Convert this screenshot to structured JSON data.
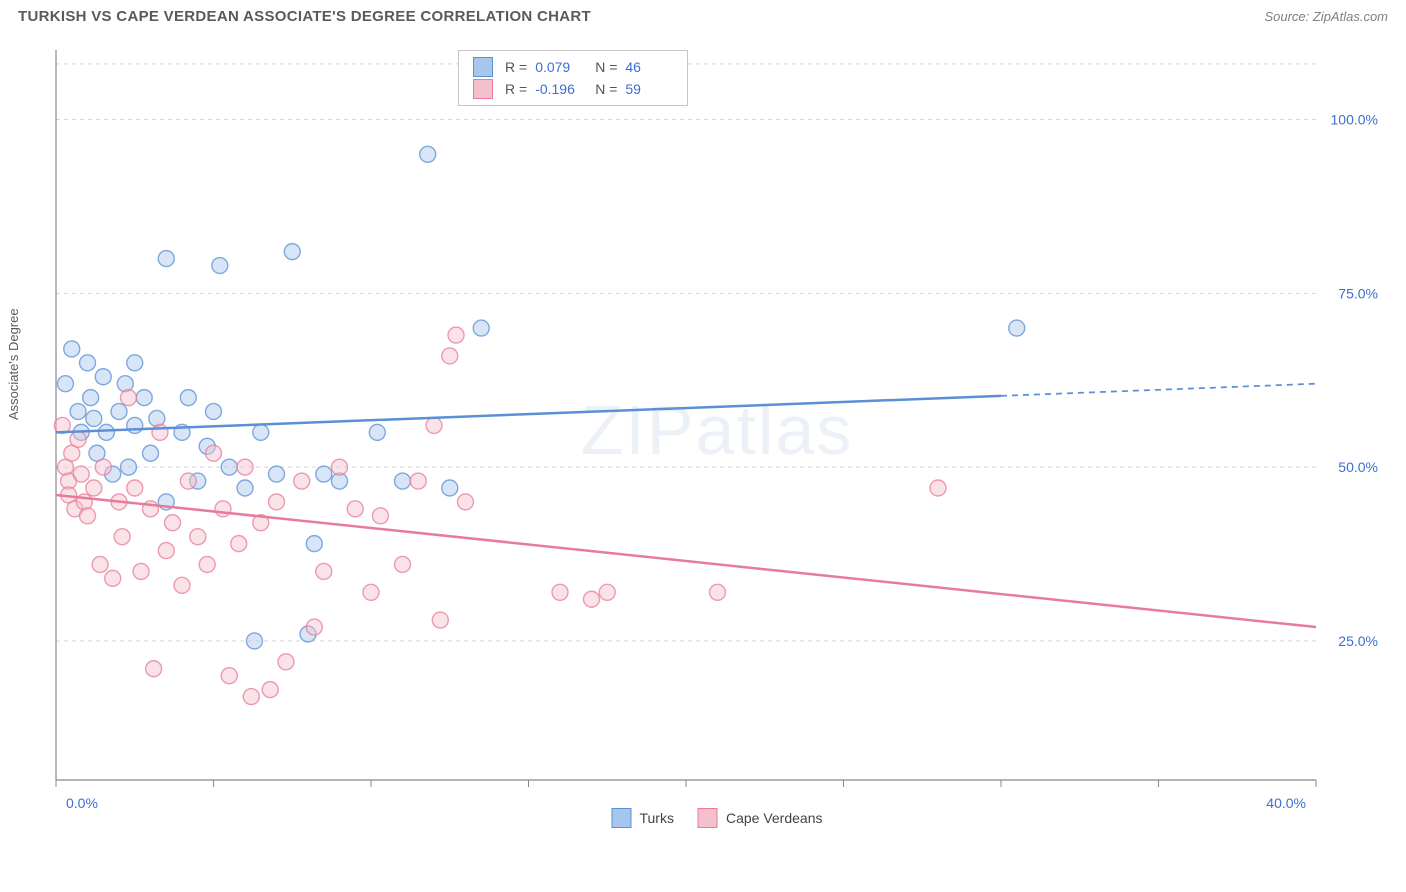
{
  "title": "TURKISH VS CAPE VERDEAN ASSOCIATE'S DEGREE CORRELATION CHART",
  "source": "Source: ZipAtlas.com",
  "watermark": "ZIPatlas",
  "y_axis_label": "Associate's Degree",
  "chart": {
    "type": "scatter",
    "background_color": "#ffffff",
    "grid_color": "#d7d7d7",
    "x": {
      "min": 0,
      "max": 40,
      "ticks": [
        0,
        5,
        10,
        15,
        20,
        25,
        30,
        35,
        40
      ],
      "labeled_ticks": [
        {
          "v": 0,
          "t": "0.0%"
        },
        {
          "v": 40,
          "t": "40.0%"
        }
      ]
    },
    "y": {
      "min": 5,
      "max": 110,
      "gridlines": [
        25,
        50,
        75,
        100
      ],
      "labels": [
        {
          "v": 25,
          "t": "25.0%"
        },
        {
          "v": 50,
          "t": "50.0%"
        },
        {
          "v": 75,
          "t": "75.0%"
        },
        {
          "v": 100,
          "t": "100.0%"
        }
      ]
    },
    "marker_radius": 8,
    "marker_opacity": 0.45,
    "line_width": 2.5,
    "series": [
      {
        "name": "Turks",
        "fill": "#a6c6ed",
        "stroke": "#5b8fd6",
        "r_value": "0.079",
        "n_value": "46",
        "trend": {
          "y_at_xmin": 55,
          "y_at_xmax": 62,
          "x_solid_end": 30
        },
        "points": [
          [
            0.3,
            62
          ],
          [
            0.5,
            67
          ],
          [
            0.7,
            58
          ],
          [
            0.8,
            55
          ],
          [
            1.0,
            65
          ],
          [
            1.1,
            60
          ],
          [
            1.2,
            57
          ],
          [
            1.3,
            52
          ],
          [
            1.5,
            63
          ],
          [
            1.6,
            55
          ],
          [
            1.8,
            49
          ],
          [
            2.0,
            58
          ],
          [
            2.2,
            62
          ],
          [
            2.3,
            50
          ],
          [
            2.5,
            56
          ],
          [
            2.5,
            65
          ],
          [
            2.8,
            60
          ],
          [
            3.0,
            52
          ],
          [
            3.2,
            57
          ],
          [
            3.5,
            45
          ],
          [
            3.5,
            80
          ],
          [
            4.0,
            55
          ],
          [
            4.2,
            60
          ],
          [
            4.5,
            48
          ],
          [
            4.8,
            53
          ],
          [
            5.0,
            58
          ],
          [
            5.2,
            79
          ],
          [
            5.5,
            50
          ],
          [
            6.0,
            47
          ],
          [
            6.3,
            25
          ],
          [
            6.5,
            55
          ],
          [
            7.0,
            49
          ],
          [
            7.5,
            81
          ],
          [
            8.0,
            26
          ],
          [
            8.2,
            39
          ],
          [
            8.5,
            49
          ],
          [
            9.0,
            48
          ],
          [
            10.2,
            55
          ],
          [
            11.0,
            48
          ],
          [
            11.8,
            95
          ],
          [
            12.5,
            47
          ],
          [
            13.5,
            70
          ],
          [
            30.5,
            70
          ]
        ]
      },
      {
        "name": "Cape Verdeans",
        "fill": "#f3c0cc",
        "stroke": "#e87b9a",
        "r_value": "-0.196",
        "n_value": "59",
        "trend": {
          "y_at_xmin": 46,
          "y_at_xmax": 27,
          "x_solid_end": 40
        },
        "points": [
          [
            0.2,
            56
          ],
          [
            0.3,
            50
          ],
          [
            0.4,
            48
          ],
          [
            0.4,
            46
          ],
          [
            0.5,
            52
          ],
          [
            0.6,
            44
          ],
          [
            0.7,
            54
          ],
          [
            0.8,
            49
          ],
          [
            0.9,
            45
          ],
          [
            1.0,
            43
          ],
          [
            1.2,
            47
          ],
          [
            1.4,
            36
          ],
          [
            1.5,
            50
          ],
          [
            1.8,
            34
          ],
          [
            2.0,
            45
          ],
          [
            2.1,
            40
          ],
          [
            2.3,
            60
          ],
          [
            2.5,
            47
          ],
          [
            2.7,
            35
          ],
          [
            3.0,
            44
          ],
          [
            3.1,
            21
          ],
          [
            3.3,
            55
          ],
          [
            3.5,
            38
          ],
          [
            3.7,
            42
          ],
          [
            4.0,
            33
          ],
          [
            4.2,
            48
          ],
          [
            4.5,
            40
          ],
          [
            4.8,
            36
          ],
          [
            5.0,
            52
          ],
          [
            5.3,
            44
          ],
          [
            5.5,
            20
          ],
          [
            5.8,
            39
          ],
          [
            6.0,
            50
          ],
          [
            6.2,
            17
          ],
          [
            6.5,
            42
          ],
          [
            6.8,
            18
          ],
          [
            7.0,
            45
          ],
          [
            7.3,
            22
          ],
          [
            7.8,
            48
          ],
          [
            8.2,
            27
          ],
          [
            8.5,
            35
          ],
          [
            9.0,
            50
          ],
          [
            9.5,
            44
          ],
          [
            10.0,
            32
          ],
          [
            10.3,
            43
          ],
          [
            11.0,
            36
          ],
          [
            11.5,
            48
          ],
          [
            12.0,
            56
          ],
          [
            12.2,
            28
          ],
          [
            12.5,
            66
          ],
          [
            12.7,
            69
          ],
          [
            13.0,
            45
          ],
          [
            16.0,
            32
          ],
          [
            17.0,
            31
          ],
          [
            17.5,
            32
          ],
          [
            21.0,
            32
          ],
          [
            28.0,
            47
          ]
        ]
      }
    ]
  },
  "legend_bottom": [
    {
      "label": "Turks",
      "fill": "#a6c6ed",
      "stroke": "#5b8fd6"
    },
    {
      "label": "Cape Verdeans",
      "fill": "#f3c0cc",
      "stroke": "#e87b9a"
    }
  ]
}
